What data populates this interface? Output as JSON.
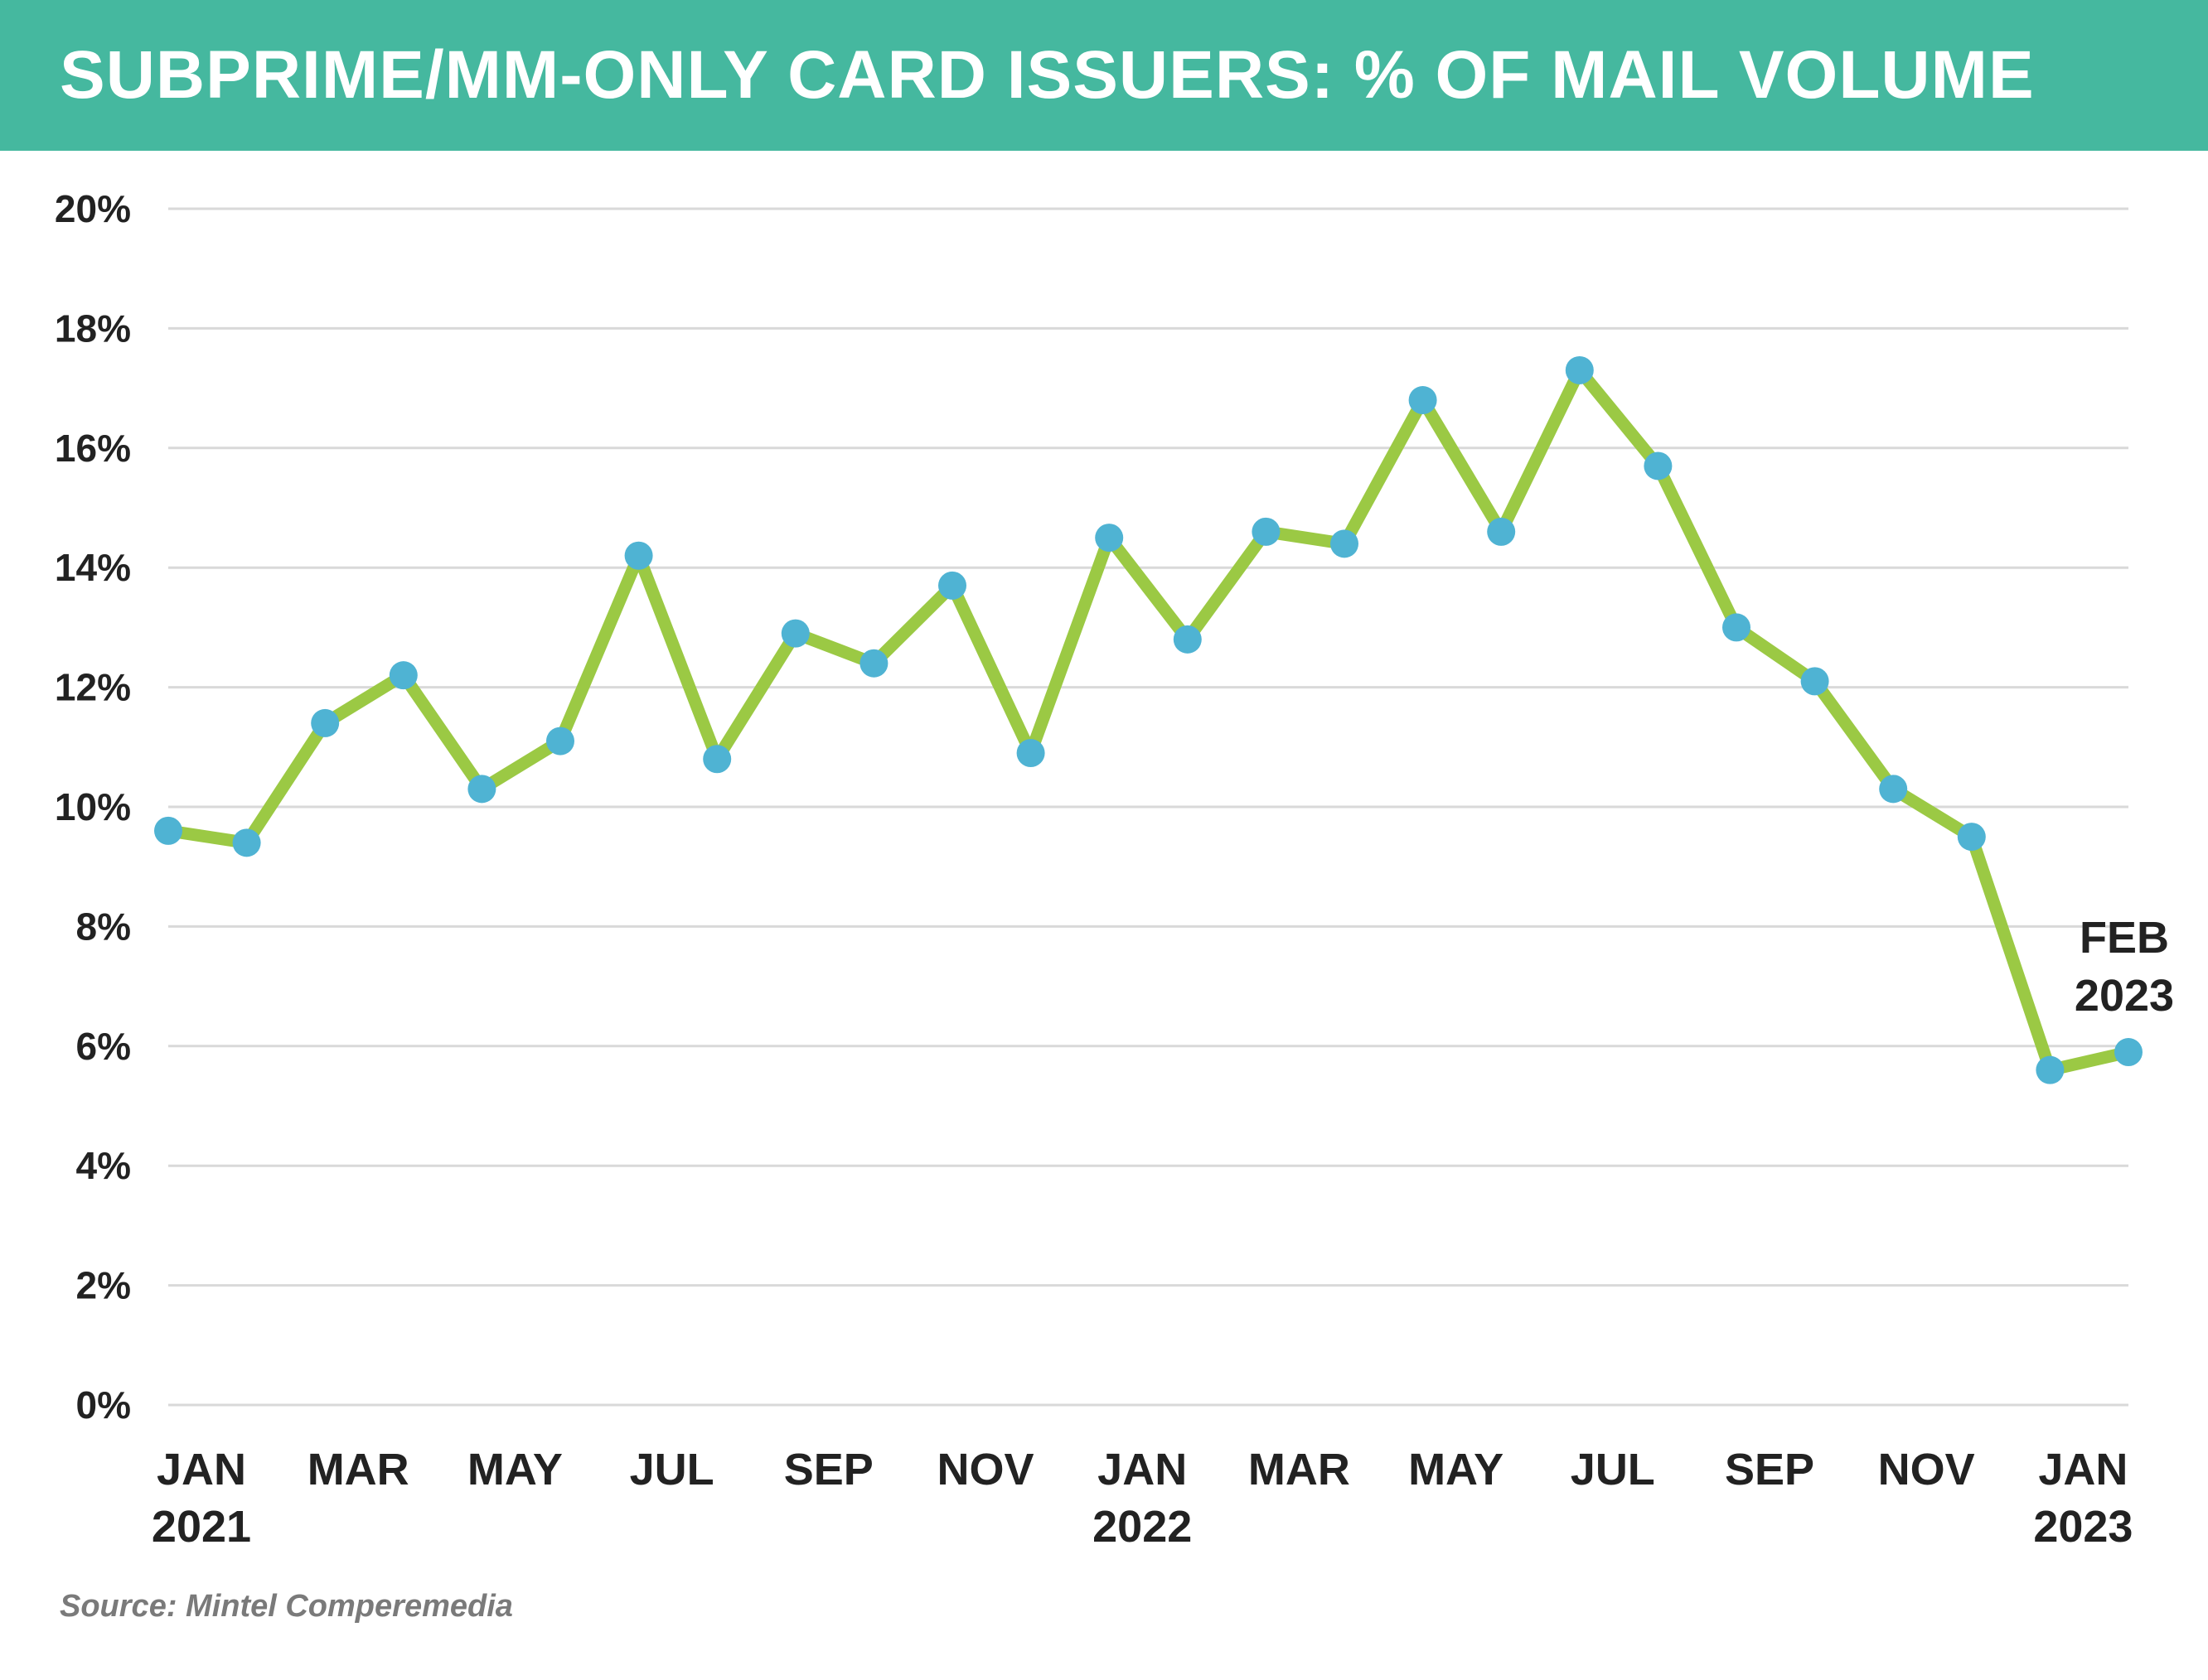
{
  "title": "SUBPRIME/MM-ONLY CARD ISSUERS: % OF MAIL VOLUME",
  "source": "Source: Mintel Comperemedia",
  "colors": {
    "banner": "#45b89f",
    "line": "#9bc944",
    "marker": "#4fb3d3",
    "grid": "#d9d9d9",
    "text": "#222222"
  },
  "chart_data": {
    "type": "line",
    "title": "SUBPRIME/MM-ONLY CARD ISSUERS: % OF MAIL VOLUME",
    "xlabel": "",
    "ylabel": "",
    "ylim": [
      0,
      20
    ],
    "grid": true,
    "x": [
      "Jan 2021",
      "Feb 2021",
      "Mar 2021",
      "Apr 2021",
      "May 2021",
      "Jun 2021",
      "Jul 2021",
      "Aug 2021",
      "Sep 2021",
      "Oct 2021",
      "Nov 2021",
      "Dec 2021",
      "Jan 2022",
      "Feb 2022",
      "Mar 2022",
      "Apr 2022",
      "May 2022",
      "Jun 2022",
      "Jul 2022",
      "Aug 2022",
      "Sep 2022",
      "Oct 2022",
      "Nov 2022",
      "Dec 2022",
      "Jan 2023",
      "Feb 2023"
    ],
    "series": [
      {
        "values": [
          9.6,
          9.4,
          11.4,
          12.2,
          10.3,
          11.1,
          14.2,
          10.8,
          12.9,
          12.4,
          13.7,
          10.9,
          14.5,
          12.8,
          14.6,
          14.4,
          16.8,
          14.6,
          17.3,
          15.7,
          13.0,
          12.1,
          10.3,
          9.5,
          5.6,
          5.9
        ]
      }
    ],
    "y_ticks": [
      "0%",
      "2%",
      "4%",
      "6%",
      "8%",
      "10%",
      "12%",
      "14%",
      "16%",
      "18%",
      "20%"
    ],
    "x_tick_labels": [
      {
        "index": 0,
        "lines": [
          "JAN",
          "2021"
        ]
      },
      {
        "index": 2,
        "lines": [
          "MAR"
        ]
      },
      {
        "index": 4,
        "lines": [
          "MAY"
        ]
      },
      {
        "index": 6,
        "lines": [
          "JUL"
        ]
      },
      {
        "index": 8,
        "lines": [
          "SEP"
        ]
      },
      {
        "index": 10,
        "lines": [
          "NOV"
        ]
      },
      {
        "index": 12,
        "lines": [
          "JAN",
          "2022"
        ]
      },
      {
        "index": 14,
        "lines": [
          "MAR"
        ]
      },
      {
        "index": 16,
        "lines": [
          "MAY"
        ]
      },
      {
        "index": 18,
        "lines": [
          "JUL"
        ]
      },
      {
        "index": 20,
        "lines": [
          "SEP"
        ]
      },
      {
        "index": 22,
        "lines": [
          "NOV"
        ]
      },
      {
        "index": 24,
        "lines": [
          "JAN",
          "2023"
        ]
      }
    ],
    "annotation": {
      "index": 25,
      "lines": [
        "FEB",
        "2023"
      ]
    }
  }
}
